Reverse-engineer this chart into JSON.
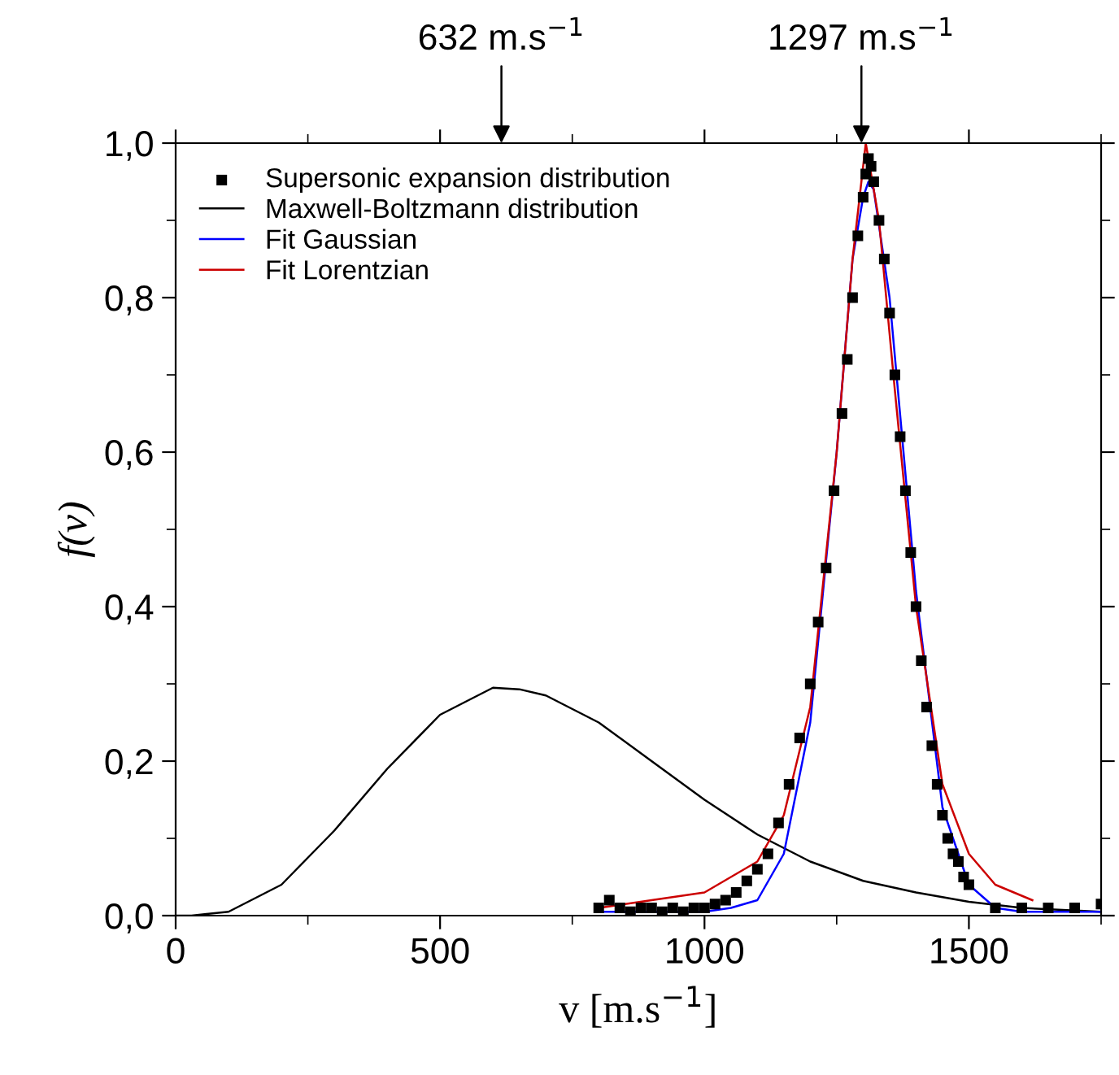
{
  "chart_data": {
    "type": "line",
    "xlabel": "v [m.s$^{−1}$]",
    "ylabel": "f(v)",
    "xlim": [
      0,
      1750
    ],
    "xticks": [
      0,
      500,
      1000,
      1500
    ],
    "ylim": [
      0,
      1.0
    ],
    "yticks": [
      {
        "value": 0,
        "label": "0,0"
      },
      {
        "value": 0.2,
        "label": "0,2"
      },
      {
        "value": 0.4,
        "label": "0,4"
      },
      {
        "value": 0.6,
        "label": "0,6"
      },
      {
        "value": 0.8,
        "label": "0,8"
      },
      {
        "value": 1.0,
        "label": "1,0"
      }
    ],
    "legend": "top left",
    "grid": false,
    "annotations": [
      "632 m.s$^{−1}$",
      "1297 m.s$^{−1}$"
    ],
    "series": [
      {
        "name": "Supersonic expansion distribution",
        "type": "scatter",
        "marker": "square",
        "color": "#000000",
        "x": [
          800,
          820,
          840,
          860,
          880,
          900,
          920,
          940,
          960,
          980,
          1000,
          1020,
          1040,
          1060,
          1080,
          1100,
          1120,
          1140,
          1160,
          1180,
          1200,
          1215,
          1230,
          1245,
          1260,
          1270,
          1280,
          1290,
          1300,
          1305,
          1310,
          1315,
          1320,
          1330,
          1340,
          1350,
          1360,
          1370,
          1380,
          1390,
          1400,
          1410,
          1420,
          1430,
          1440,
          1450,
          1460,
          1470,
          1480,
          1490,
          1500,
          1550,
          1600,
          1650,
          1700,
          1750
        ],
        "values": [
          0.01,
          0.02,
          0.01,
          0.005,
          0.01,
          0.01,
          0.005,
          0.01,
          0.005,
          0.01,
          0.01,
          0.015,
          0.02,
          0.03,
          0.045,
          0.06,
          0.08,
          0.12,
          0.17,
          0.23,
          0.3,
          0.38,
          0.45,
          0.55,
          0.65,
          0.72,
          0.8,
          0.88,
          0.93,
          0.96,
          0.98,
          0.97,
          0.95,
          0.9,
          0.85,
          0.78,
          0.7,
          0.62,
          0.55,
          0.47,
          0.4,
          0.33,
          0.27,
          0.22,
          0.17,
          0.13,
          0.1,
          0.08,
          0.07,
          0.05,
          0.04,
          0.01,
          0.01,
          0.01,
          0.01,
          0.015
        ]
      },
      {
        "name": "Maxwell-Boltzmann distribution",
        "marker": "none",
        "color": "#000000",
        "x": [
          0,
          30,
          100,
          200,
          300,
          400,
          500,
          600,
          650,
          700,
          800,
          900,
          1000,
          1100,
          1200,
          1300,
          1400,
          1500,
          1600,
          1750
        ],
        "values": [
          0,
          0,
          0.005,
          0.04,
          0.11,
          0.19,
          0.26,
          0.295,
          0.293,
          0.285,
          0.25,
          0.2,
          0.15,
          0.105,
          0.07,
          0.045,
          0.03,
          0.018,
          0.01,
          0.005
        ]
      },
      {
        "name": "Fit Gaussian",
        "marker": "none",
        "color": "#0000ff",
        "x": [
          800,
          900,
          1000,
          1050,
          1100,
          1150,
          1200,
          1250,
          1280,
          1300,
          1310,
          1320,
          1350,
          1400,
          1450,
          1500,
          1550,
          1600,
          1750
        ],
        "values": [
          0.005,
          0.005,
          0.005,
          0.01,
          0.02,
          0.08,
          0.25,
          0.6,
          0.85,
          0.93,
          0.95,
          0.94,
          0.8,
          0.42,
          0.14,
          0.04,
          0.01,
          0.005,
          0.005
        ]
      },
      {
        "name": "Fit Lorentzian",
        "marker": "none",
        "color": "#cc0000",
        "x": [
          800,
          900,
          1000,
          1100,
          1150,
          1200,
          1250,
          1280,
          1305,
          1330,
          1360,
          1400,
          1450,
          1500,
          1550,
          1620
        ],
        "values": [
          0.01,
          0.02,
          0.03,
          0.07,
          0.13,
          0.27,
          0.6,
          0.85,
          1.0,
          0.9,
          0.68,
          0.4,
          0.17,
          0.08,
          0.04,
          0.02
        ]
      }
    ]
  }
}
